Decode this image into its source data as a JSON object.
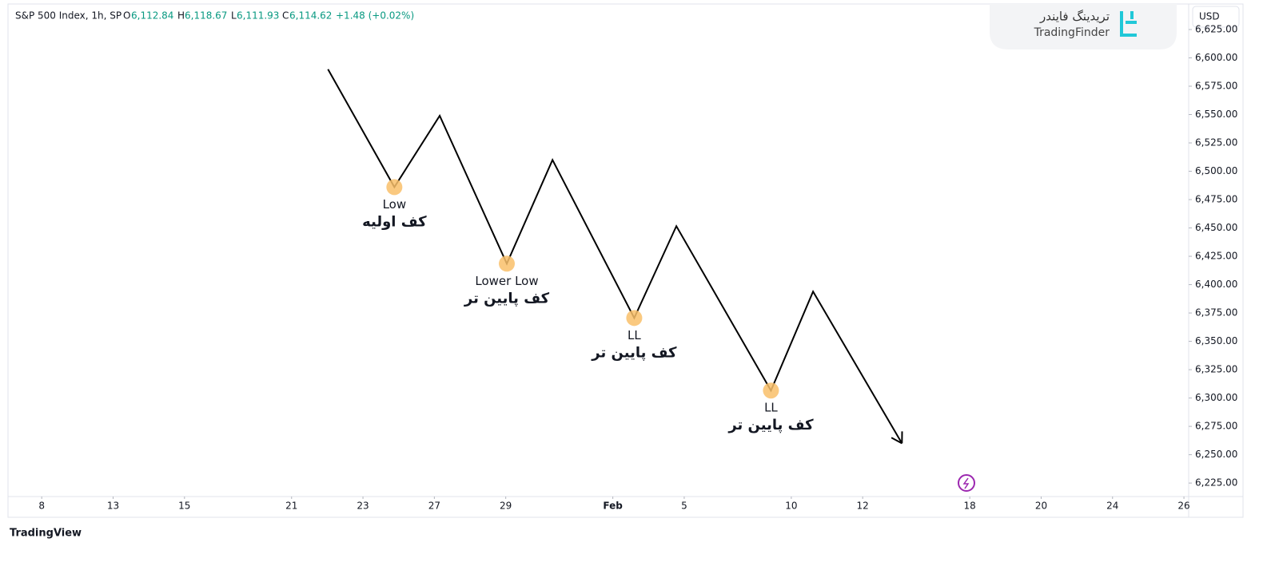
{
  "header": {
    "symbol": "S&P 500 Index, 1h, SP",
    "open_label": "O",
    "open": "6,112.84",
    "high_label": "H",
    "high": "6,118.67",
    "low_label": "L",
    "low": "6,111.93",
    "close_label": "C",
    "close": "6,114.62",
    "change": "+1.48 (+0.02%)"
  },
  "logo": {
    "name_fa": "تریدینگ فایندر",
    "name_en": "TradingFinder"
  },
  "currency": "USD",
  "footer": "TradingView",
  "chart_data": {
    "type": "line",
    "color": "#000000",
    "x": [
      8.02,
      9.88,
      11.15,
      13.03,
      14.31,
      16.6,
      17.78,
      20.43,
      21.61,
      24.1
    ],
    "values": [
      6590,
      6486,
      6549,
      6418.5,
      6510,
      6370.6,
      6451.6,
      6306.6,
      6393.9,
      6260
    ],
    "ylim": [
      6211,
      6644
    ],
    "xlim": [
      -0.9,
      32.2
    ],
    "yticks": [
      {
        "value": 6225,
        "label": "6,225.00"
      },
      {
        "value": 6250,
        "label": "6,250.00"
      },
      {
        "value": 6275,
        "label": "6,275.00"
      },
      {
        "value": 6300,
        "label": "6,300.00"
      },
      {
        "value": 6325,
        "label": "6,325.00"
      },
      {
        "value": 6350,
        "label": "6,350.00"
      },
      {
        "value": 6375,
        "label": "6,375.00"
      },
      {
        "value": 6400,
        "label": "6,400.00"
      },
      {
        "value": 6425,
        "label": "6,425.00"
      },
      {
        "value": 6450,
        "label": "6,450.00"
      },
      {
        "value": 6475,
        "label": "6,475.00"
      },
      {
        "value": 6500,
        "label": "6,500.00"
      },
      {
        "value": 6525,
        "label": "6,525.00"
      },
      {
        "value": 6550,
        "label": "6,550.00"
      },
      {
        "value": 6575,
        "label": "6,575.00"
      },
      {
        "value": 6600,
        "label": "6,600.00"
      },
      {
        "value": 6625,
        "label": "6,625.00"
      }
    ],
    "xticks": [
      {
        "value": 0,
        "label": "8"
      },
      {
        "value": 2,
        "label": "13"
      },
      {
        "value": 4,
        "label": "15"
      },
      {
        "value": 7,
        "label": "21"
      },
      {
        "value": 9,
        "label": "23"
      },
      {
        "value": 11,
        "label": "27"
      },
      {
        "value": 13,
        "label": "29"
      },
      {
        "value": 16,
        "label": "Feb"
      },
      {
        "value": 18,
        "label": "5"
      },
      {
        "value": 21,
        "label": "10"
      },
      {
        "value": 23,
        "label": "12"
      },
      {
        "value": 26,
        "label": "18"
      },
      {
        "value": 28,
        "label": "20"
      },
      {
        "value": 30,
        "label": "24"
      },
      {
        "value": 32,
        "label": "26"
      }
    ],
    "marker_color": "#f9c06a",
    "annotations": [
      {
        "x": 9.88,
        "y": 6486,
        "label": "Low",
        "label_fa": "کف اولیه"
      },
      {
        "x": 13.03,
        "y": 6418.5,
        "label": "Lower Low",
        "label_fa": "کف پایین تر"
      },
      {
        "x": 16.6,
        "y": 6370.6,
        "label": "LL",
        "label_fa": "کف پایین تر"
      },
      {
        "x": 20.43,
        "y": 6306.6,
        "label": "LL",
        "label_fa": "کف پایین تر"
      }
    ]
  }
}
